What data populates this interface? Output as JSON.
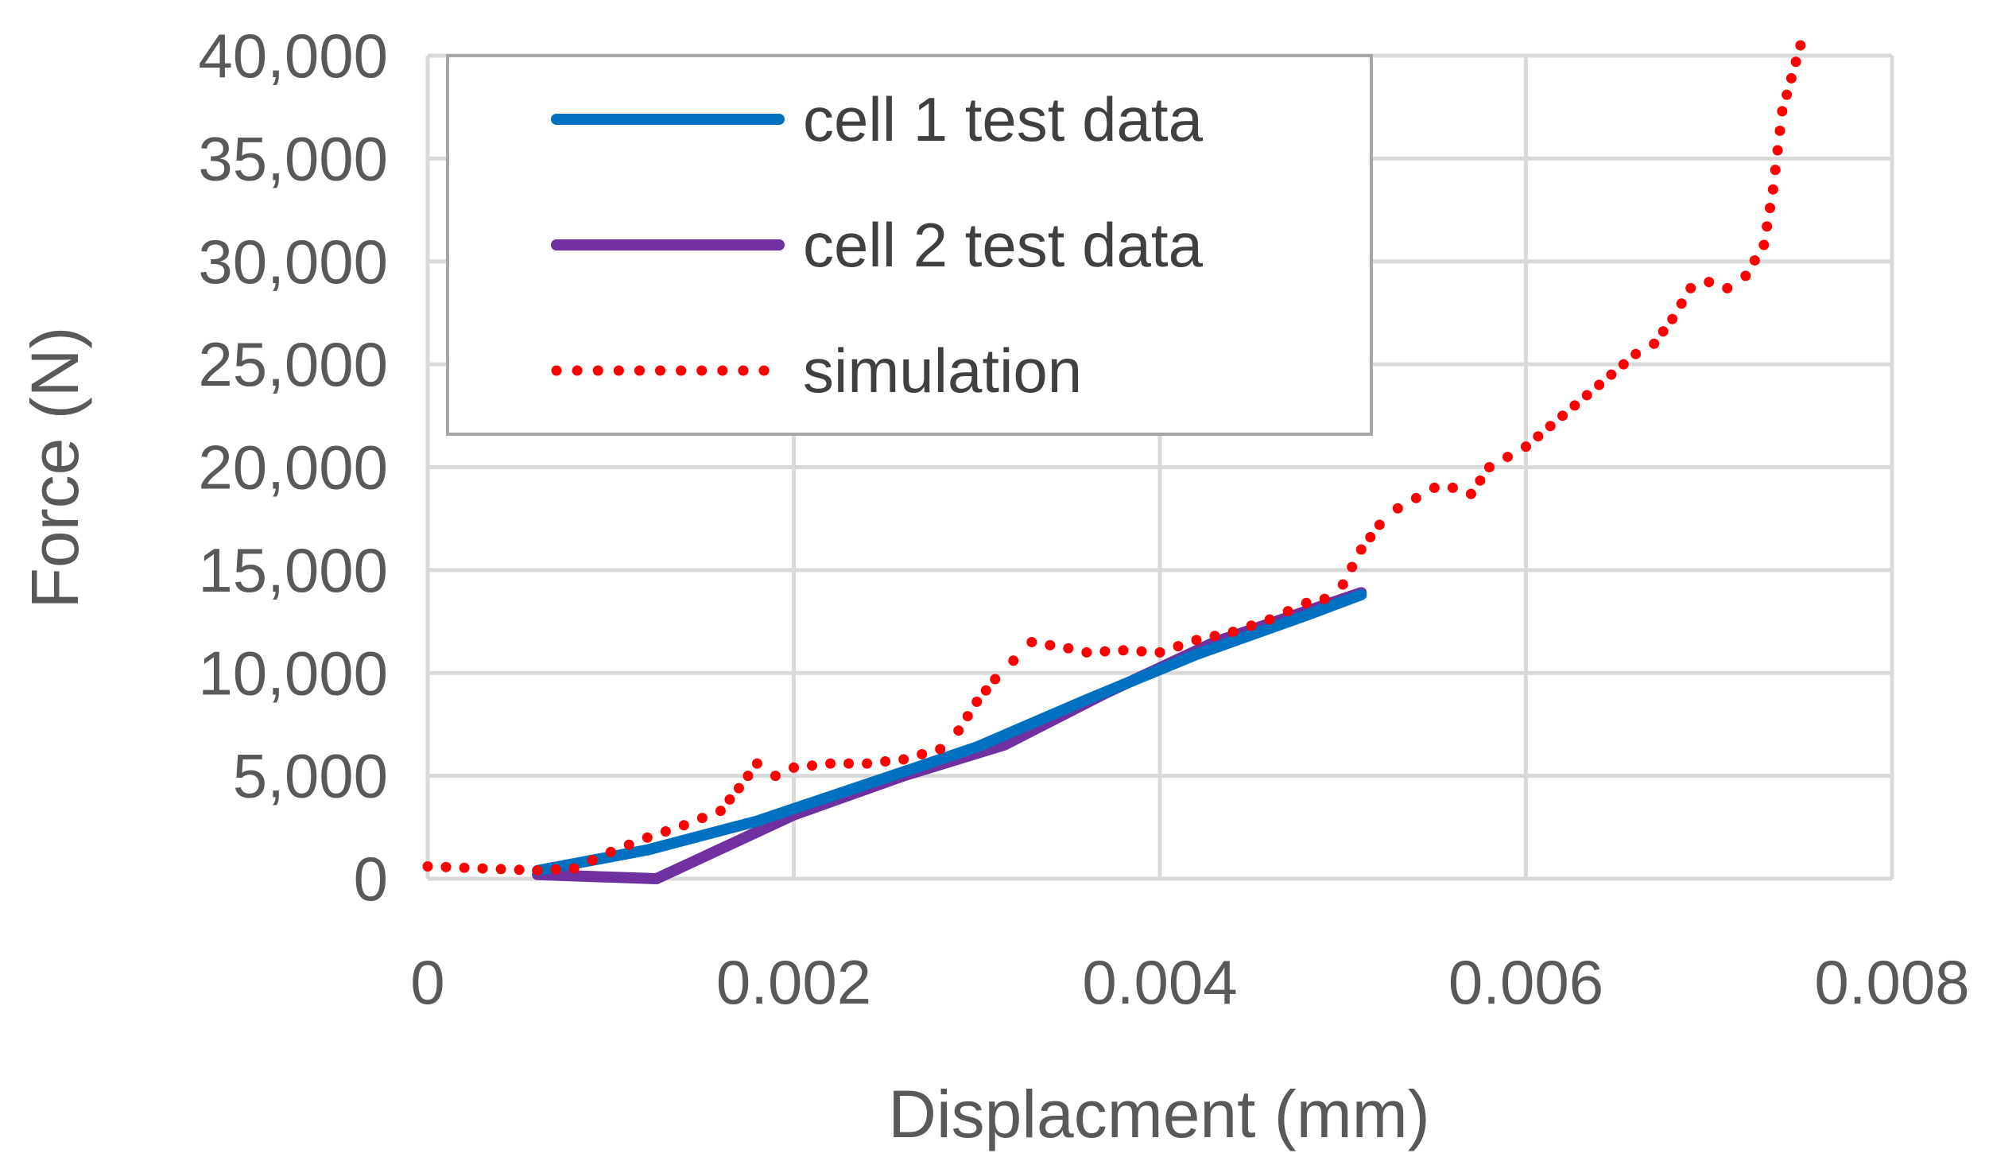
{
  "chart_data": {
    "type": "line",
    "title": "",
    "xlabel": "Displacment (mm)",
    "ylabel": "Force (N)",
    "xlim": [
      0,
      0.008
    ],
    "ylim": [
      0,
      40000
    ],
    "x_ticks": [
      0,
      0.002,
      0.004,
      0.006,
      0.008
    ],
    "y_ticks": [
      0,
      5000,
      10000,
      15000,
      20000,
      25000,
      30000,
      35000,
      40000
    ],
    "x_tick_labels": [
      "0",
      "0.002",
      "0.004",
      "0.006",
      "0.008"
    ],
    "y_tick_labels": [
      "0",
      "5,000",
      "10,000",
      "15,000",
      "20,000",
      "25,000",
      "30,000",
      "35,000",
      "40,000"
    ],
    "grid": true,
    "legend_position": "top-left",
    "series": [
      {
        "name": "cell 1 test data",
        "color": "#0070C0",
        "style": "solid",
        "x": [
          0.0006,
          0.0012,
          0.0018,
          0.0024,
          0.003,
          0.0036,
          0.0042,
          0.0048,
          0.0051
        ],
        "y": [
          400,
          1400,
          2800,
          4600,
          6400,
          8700,
          10900,
          12800,
          13800
        ]
      },
      {
        "name": "cell 2 test data",
        "color": "#7030A0",
        "style": "solid",
        "x": [
          0.0006,
          0.00125,
          0.002,
          0.0026,
          0.00315,
          0.0037,
          0.0043,
          0.0051
        ],
        "y": [
          200,
          0,
          3100,
          5000,
          6500,
          9000,
          11500,
          13900
        ]
      },
      {
        "name": "simulation",
        "color": "#FF0000",
        "style": "dotted",
        "x": [
          0,
          0.0003,
          0.0006,
          0.0008,
          0.001,
          0.0012,
          0.0014,
          0.0016,
          0.0017,
          0.0018,
          0.0019,
          0.002,
          0.0022,
          0.0024,
          0.0026,
          0.0028,
          0.0029,
          0.003,
          0.0031,
          0.0032,
          0.0033,
          0.0035,
          0.0036,
          0.0038,
          0.004,
          0.0042,
          0.0044,
          0.0046,
          0.0048,
          0.0049,
          0.005,
          0.0051,
          0.0052,
          0.0053,
          0.0055,
          0.0056,
          0.0057,
          0.0058,
          0.006,
          0.0062,
          0.0064,
          0.0066,
          0.0067,
          0.0068,
          0.0069,
          0.007,
          0.0071,
          0.0072,
          0.0073,
          0.00735,
          0.0074,
          0.0075
        ],
        "y": [
          600,
          500,
          400,
          500,
          1300,
          2000,
          2600,
          3300,
          4400,
          5600,
          5000,
          5400,
          5600,
          5600,
          5800,
          6300,
          7200,
          8600,
          9700,
          10600,
          11500,
          11200,
          11000,
          11100,
          11000,
          11600,
          12000,
          12600,
          13400,
          13600,
          14300,
          16000,
          17200,
          18000,
          19000,
          19000,
          18700,
          20000,
          21000,
          22500,
          24000,
          25500,
          26000,
          27200,
          28700,
          29000,
          28700,
          29300,
          30800,
          33500,
          37300,
          40500
        ]
      }
    ]
  }
}
